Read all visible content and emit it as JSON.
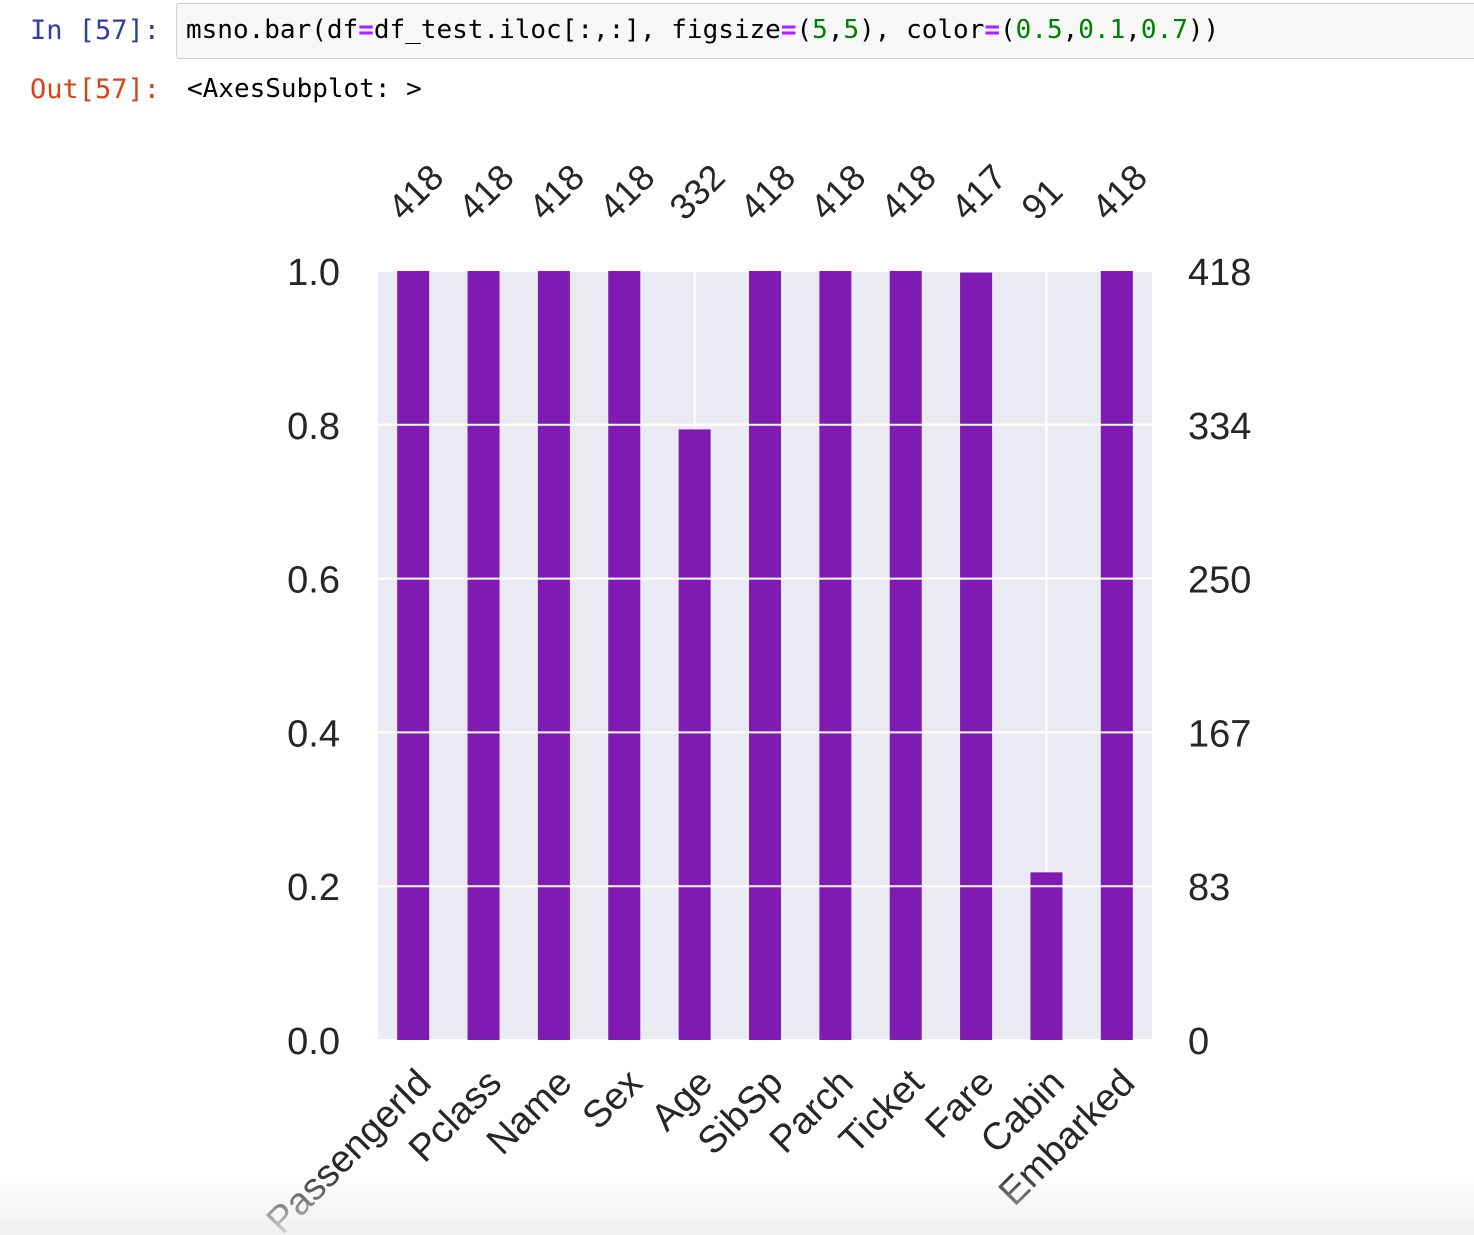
{
  "cell": {
    "input_prompt": "In [57]:",
    "output_prompt": "Out[57]:",
    "code": [
      {
        "t": "msno.bar(df",
        "c": "plain"
      },
      {
        "t": "=",
        "c": "op"
      },
      {
        "t": "df_test.iloc[:,:], figsize",
        "c": "plain"
      },
      {
        "t": "=",
        "c": "op"
      },
      {
        "t": "(",
        "c": "plain"
      },
      {
        "t": "5",
        "c": "num"
      },
      {
        "t": ",",
        "c": "plain"
      },
      {
        "t": "5",
        "c": "num"
      },
      {
        "t": "), color",
        "c": "plain"
      },
      {
        "t": "=",
        "c": "op"
      },
      {
        "t": "(",
        "c": "plain"
      },
      {
        "t": "0.5",
        "c": "num"
      },
      {
        "t": ",",
        "c": "plain"
      },
      {
        "t": "0.1",
        "c": "num"
      },
      {
        "t": ",",
        "c": "plain"
      },
      {
        "t": "0.7",
        "c": "num"
      },
      {
        "t": "))",
        "c": "plain"
      }
    ],
    "output_text": "<AxesSubplot: >"
  },
  "chart_data": {
    "type": "bar",
    "categories": [
      "PassengerId",
      "Pclass",
      "Name",
      "Sex",
      "Age",
      "SibSp",
      "Parch",
      "Ticket",
      "Fare",
      "Cabin",
      "Embarked"
    ],
    "values": [
      1.0,
      1.0,
      1.0,
      1.0,
      0.794,
      1.0,
      1.0,
      1.0,
      0.998,
      0.218,
      1.0
    ],
    "counts": [
      "418",
      "418",
      "418",
      "418",
      "332",
      "418",
      "418",
      "418",
      "417",
      "91",
      "418"
    ],
    "ylim": [
      0,
      1
    ],
    "left_ticks": [
      "0.0",
      "0.2",
      "0.4",
      "0.6",
      "0.8",
      "1.0"
    ],
    "right_ticks": [
      "0",
      "83",
      "167",
      "250",
      "334",
      "418"
    ],
    "bar_color": "#7f1ab3",
    "axes_background": "#eaeaf2",
    "grid": true
  }
}
